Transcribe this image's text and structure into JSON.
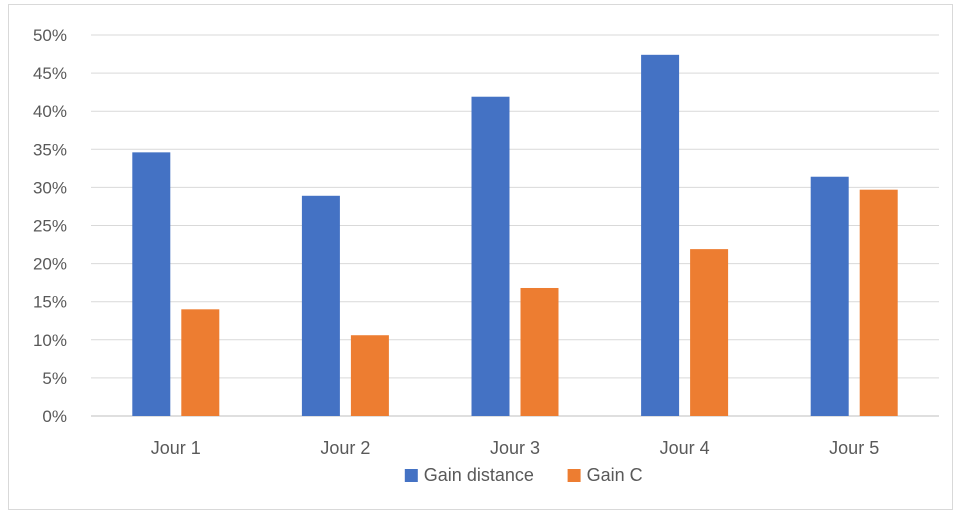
{
  "chart_data": {
    "type": "bar",
    "title": "",
    "xlabel": "",
    "ylabel": "",
    "categories": [
      "Jour 1",
      "Jour 2",
      "Jour 3",
      "Jour 4",
      "Jour 5"
    ],
    "series": [
      {
        "name": "Gain distance",
        "color": "#4472C4",
        "values": [
          0.346,
          0.289,
          0.419,
          0.474,
          0.314
        ]
      },
      {
        "name": "Gain C",
        "color": "#ED7D31",
        "values": [
          0.14,
          0.106,
          0.168,
          0.219,
          0.297
        ]
      }
    ],
    "ylim": [
      0,
      0.5
    ],
    "yticks": [
      "0%",
      "5%",
      "10%",
      "15%",
      "20%",
      "25%",
      "30%",
      "35%",
      "40%",
      "45%",
      "50%"
    ],
    "grid": true,
    "legend_position": "bottom"
  }
}
